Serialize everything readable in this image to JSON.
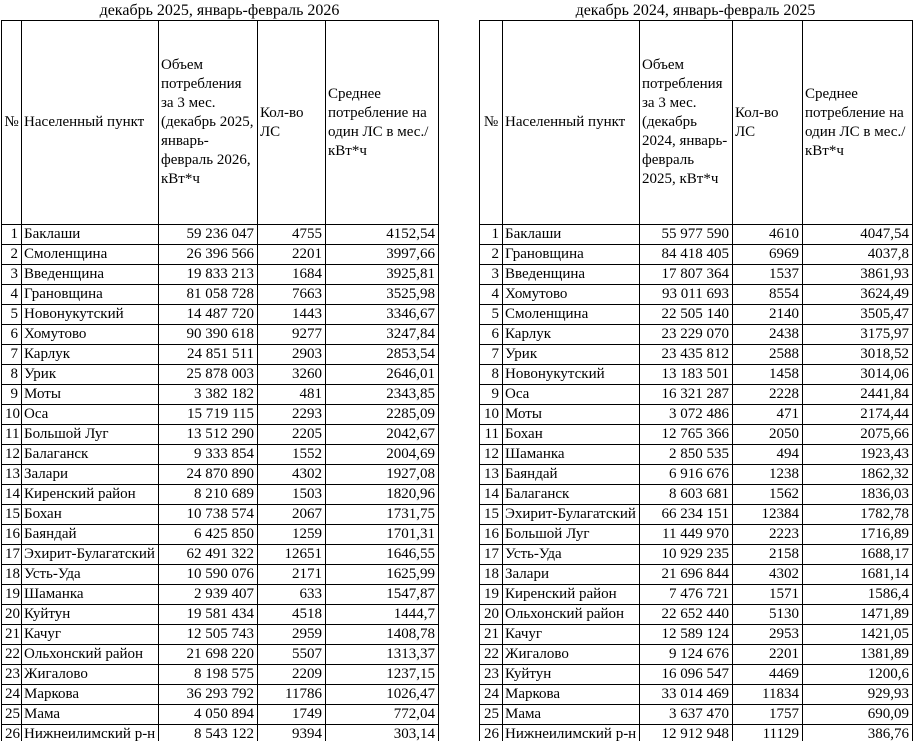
{
  "page": {
    "background": "#ffffff",
    "border_color": "#000000",
    "text_color": "#000000"
  },
  "tables": [
    {
      "title": "декабрь 2025, январь-февраль 2026",
      "columns": [
        "№",
        "Населенный пункт",
        "Объем потребления за 3 мес. (декабрь 2025, январь-февраль 2026, кВт*ч",
        "Кол-во ЛС",
        "Среднее потребление на один ЛС в мес./кВт*ч"
      ],
      "rows": [
        [
          "1",
          "Баклаши",
          "59 236 047",
          "4755",
          "4152,54"
        ],
        [
          "2",
          "Смоленщина",
          "26 396 566",
          "2201",
          "3997,66"
        ],
        [
          "3",
          "Введенщина",
          "19 833 213",
          "1684",
          "3925,81"
        ],
        [
          "4",
          "Грановщина",
          "81 058 728",
          "7663",
          "3525,98"
        ],
        [
          "5",
          "Новонукутский",
          "14 487 720",
          "1443",
          "3346,67"
        ],
        [
          "6",
          "Хомутово",
          "90 390 618",
          "9277",
          "3247,84"
        ],
        [
          "7",
          "Карлук",
          "24 851 511",
          "2903",
          "2853,54"
        ],
        [
          "8",
          "Урик",
          "25 878 003",
          "3260",
          "2646,01"
        ],
        [
          "9",
          "Моты",
          "3 382 182",
          "481",
          "2343,85"
        ],
        [
          "10",
          "Оса",
          "15 719 115",
          "2293",
          "2285,09"
        ],
        [
          "11",
          "Большой Луг",
          "13 512 290",
          "2205",
          "2042,67"
        ],
        [
          "12",
          "Балаганск",
          "9 333 854",
          "1552",
          "2004,69"
        ],
        [
          "13",
          "Залари",
          "24 870 890",
          "4302",
          "1927,08"
        ],
        [
          "14",
          "Киренский район",
          "8 210 689",
          "1503",
          "1820,96"
        ],
        [
          "15",
          "Бохан",
          "10 738 574",
          "2067",
          "1731,75"
        ],
        [
          "16",
          "Баяндай",
          "6 425 850",
          "1259",
          "1701,31"
        ],
        [
          "17",
          "Эхирит-Булагатский",
          "62 491 322",
          "12651",
          "1646,55"
        ],
        [
          "18",
          "Усть-Уда",
          "10 590 076",
          "2171",
          "1625,99"
        ],
        [
          "19",
          "Шаманка",
          "2 939 407",
          "633",
          "1547,87"
        ],
        [
          "20",
          "Куйтун",
          "19 581 434",
          "4518",
          "1444,7"
        ],
        [
          "21",
          "Качуг",
          "12 505 743",
          "2959",
          "1408,78"
        ],
        [
          "22",
          "Ольхонский район",
          "21 698 220",
          "5507",
          "1313,37"
        ],
        [
          "23",
          "Жигалово",
          "8 198 575",
          "2209",
          "1237,15"
        ],
        [
          "24",
          "Маркова",
          "36 293 792",
          "11786",
          "1026,47"
        ],
        [
          "25",
          "Мама",
          "4 050 894",
          "1749",
          "772,04"
        ],
        [
          "26",
          "Нижнеилимский р-н",
          "8 543 122",
          "9394",
          "303,14"
        ]
      ]
    },
    {
      "title": "декабрь 2024, январь-февраль 2025",
      "columns": [
        "№",
        "Населенный пункт",
        "Объем потребления за 3 мес. (декабрь 2024, январь-февраль 2025, кВт*ч",
        "Кол-во ЛС",
        "Среднее потребление на один ЛС в мес./кВт*ч"
      ],
      "rows": [
        [
          "1",
          "Баклаши",
          "55 977 590",
          "4610",
          "4047,54"
        ],
        [
          "2",
          "Грановщина",
          "84 418 405",
          "6969",
          "4037,8"
        ],
        [
          "3",
          "Введенщина",
          "17 807 364",
          "1537",
          "3861,93"
        ],
        [
          "4",
          "Хомутово",
          "93 011 693",
          "8554",
          "3624,49"
        ],
        [
          "5",
          "Смоленщина",
          "22 505 140",
          "2140",
          "3505,47"
        ],
        [
          "6",
          "Карлук",
          "23 229 070",
          "2438",
          "3175,97"
        ],
        [
          "7",
          "Урик",
          "23 435 812",
          "2588",
          "3018,52"
        ],
        [
          "8",
          "Новонукутский",
          "13 183 501",
          "1458",
          "3014,06"
        ],
        [
          "9",
          "Оса",
          "16 321 287",
          "2228",
          "2441,84"
        ],
        [
          "10",
          "Моты",
          "3 072 486",
          "471",
          "2174,44"
        ],
        [
          "11",
          "Бохан",
          "12 765 366",
          "2050",
          "2075,66"
        ],
        [
          "12",
          "Шаманка",
          "2 850 535",
          "494",
          "1923,43"
        ],
        [
          "13",
          "Баяндай",
          "6 916 676",
          "1238",
          "1862,32"
        ],
        [
          "14",
          "Балаганск",
          "8 603 681",
          "1562",
          "1836,03"
        ],
        [
          "15",
          "Эхирит-Булагатский",
          "66 234 151",
          "12384",
          "1782,78"
        ],
        [
          "16",
          "Большой Луг",
          "11 449 970",
          "2223",
          "1716,89"
        ],
        [
          "17",
          "Усть-Уда",
          "10 929 235",
          "2158",
          "1688,17"
        ],
        [
          "18",
          "Залари",
          "21 696 844",
          "4302",
          "1681,14"
        ],
        [
          "19",
          "Киренский район",
          "7 476 721",
          "1571",
          "1586,4"
        ],
        [
          "20",
          "Ольхонский район",
          "22 652 440",
          "5130",
          "1471,89"
        ],
        [
          "21",
          "Качуг",
          "12 589 124",
          "2953",
          "1421,05"
        ],
        [
          "22",
          "Жигалово",
          "9 124 676",
          "2201",
          "1381,89"
        ],
        [
          "23",
          "Куйтун",
          "16 096 547",
          "4469",
          "1200,6"
        ],
        [
          "24",
          "Маркова",
          "33 014 469",
          "11834",
          "929,93"
        ],
        [
          "25",
          "Мама",
          "3 637 470",
          "1757",
          "690,09"
        ],
        [
          "26",
          "Нижнеилимский р-н",
          "12 912 948",
          "11129",
          "386,76"
        ]
      ]
    }
  ]
}
